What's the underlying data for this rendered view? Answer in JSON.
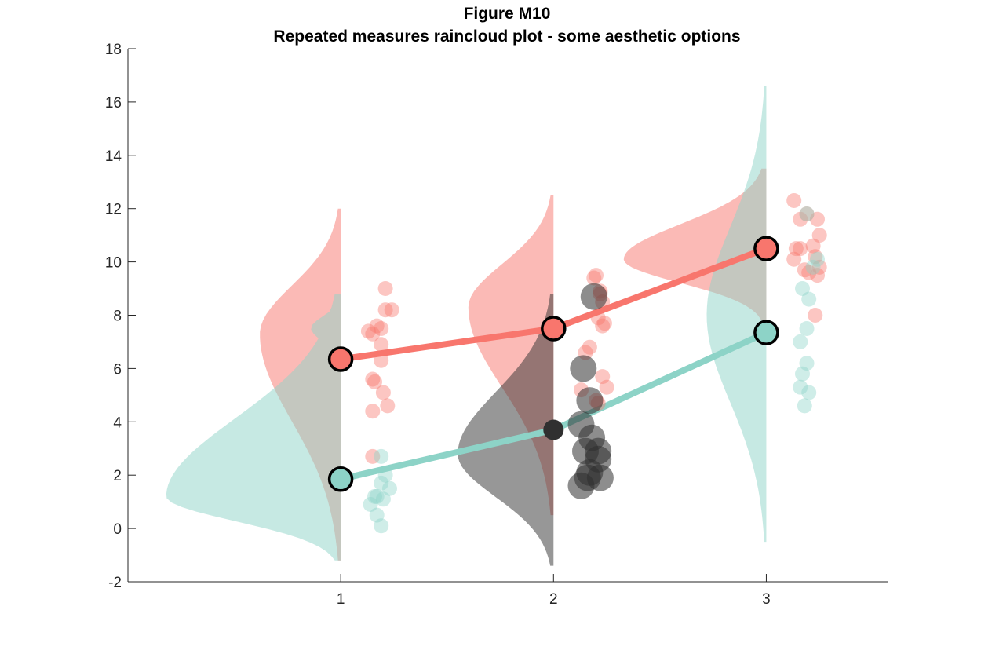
{
  "chart_data": {
    "type": "raincloud",
    "title": "Figure M10",
    "subtitle": "Repeated measures raincloud plot - some aesthetic options",
    "xlabel": "",
    "ylabel": "",
    "xlim": [
      0,
      3.57
    ],
    "ylim": [
      -2,
      18
    ],
    "x_ticks": [
      1,
      2,
      3
    ],
    "y_ticks": [
      -2,
      0,
      2,
      4,
      6,
      8,
      10,
      12,
      14,
      16,
      18
    ],
    "grid": false,
    "colors": {
      "series_a": "#f8766d",
      "series_b": "#8dd3c7",
      "highlight": "#303030"
    },
    "series": [
      {
        "color_key": "series_a",
        "means": [
          {
            "x": 1,
            "y": 6.35
          },
          {
            "x": 2,
            "y": 7.5
          },
          {
            "x": 3,
            "y": 10.5
          }
        ],
        "clouds": [
          {
            "x": 1,
            "ymin": -1.2,
            "ymax": 12.0,
            "mode": 7.3,
            "width": 0.38
          },
          {
            "x": 2,
            "ymin": 0.5,
            "ymax": 12.5,
            "mode": 8.3,
            "width": 0.4
          },
          {
            "x": 3,
            "ymin": 7.8,
            "ymax": 13.5,
            "mode": 10.1,
            "width": 0.67
          }
        ],
        "rain": [
          {
            "x": 1.13,
            "y": 7.4
          },
          {
            "x": 1.15,
            "y": 7.3
          },
          {
            "x": 1.17,
            "y": 7.6
          },
          {
            "x": 1.19,
            "y": 7.5
          },
          {
            "x": 1.21,
            "y": 9.0
          },
          {
            "x": 1.21,
            "y": 8.2
          },
          {
            "x": 1.24,
            "y": 8.2
          },
          {
            "x": 1.19,
            "y": 6.9
          },
          {
            "x": 1.19,
            "y": 6.3
          },
          {
            "x": 1.2,
            "y": 5.1
          },
          {
            "x": 1.15,
            "y": 5.6
          },
          {
            "x": 1.16,
            "y": 5.5
          },
          {
            "x": 1.22,
            "y": 4.6
          },
          {
            "x": 1.15,
            "y": 4.4
          },
          {
            "x": 1.15,
            "y": 2.7
          },
          {
            "x": 2.15,
            "y": 6.6
          },
          {
            "x": 2.17,
            "y": 6.8
          },
          {
            "x": 2.19,
            "y": 9.4
          },
          {
            "x": 2.2,
            "y": 9.5
          },
          {
            "x": 2.22,
            "y": 8.9
          },
          {
            "x": 2.23,
            "y": 8.5
          },
          {
            "x": 2.21,
            "y": 7.9
          },
          {
            "x": 2.24,
            "y": 7.7
          },
          {
            "x": 2.23,
            "y": 7.6
          },
          {
            "x": 2.23,
            "y": 5.7
          },
          {
            "x": 2.25,
            "y": 5.3
          },
          {
            "x": 2.13,
            "y": 5.2
          },
          {
            "x": 2.2,
            "y": 4.8
          },
          {
            "x": 2.21,
            "y": 4.7
          },
          {
            "x": 2.22,
            "y": 8.8
          },
          {
            "x": 3.13,
            "y": 12.3
          },
          {
            "x": 3.16,
            "y": 11.6
          },
          {
            "x": 3.19,
            "y": 11.8
          },
          {
            "x": 3.24,
            "y": 11.6
          },
          {
            "x": 3.22,
            "y": 10.6
          },
          {
            "x": 3.25,
            "y": 11.0
          },
          {
            "x": 3.14,
            "y": 10.5
          },
          {
            "x": 3.16,
            "y": 10.5
          },
          {
            "x": 3.13,
            "y": 10.1
          },
          {
            "x": 3.23,
            "y": 10.2
          },
          {
            "x": 3.18,
            "y": 9.7
          },
          {
            "x": 3.2,
            "y": 9.6
          },
          {
            "x": 3.24,
            "y": 9.5
          },
          {
            "x": 3.25,
            "y": 9.8
          },
          {
            "x": 3.23,
            "y": 8.0
          }
        ]
      },
      {
        "color_key": "series_b",
        "means": [
          {
            "x": 1,
            "y": 1.85
          },
          {
            "x": 2,
            "y": 3.7,
            "color_key": "highlight",
            "no_outline": true
          },
          {
            "x": 3,
            "y": 7.35
          }
        ],
        "clouds": [
          {
            "x": 1,
            "ymin": -1.2,
            "ymax": 8.8,
            "mode": 1.2,
            "width": 0.82,
            "pair_mode": 7.5,
            "pair_width": 0.14
          },
          {
            "x": 2,
            "ymin": -1.4,
            "ymax": 8.8,
            "mode": 2.8,
            "width": 0.45,
            "color_key": "highlight"
          },
          {
            "x": 3,
            "ymin": -0.5,
            "ymax": 16.6,
            "mode": 8.0,
            "width": 0.28
          }
        ],
        "rain": [
          {
            "x": 1.19,
            "y": 2.7
          },
          {
            "x": 1.21,
            "y": 2.0
          },
          {
            "x": 1.19,
            "y": 1.7
          },
          {
            "x": 1.23,
            "y": 1.5
          },
          {
            "x": 1.16,
            "y": 1.2
          },
          {
            "x": 1.17,
            "y": 1.2
          },
          {
            "x": 1.2,
            "y": 1.1
          },
          {
            "x": 1.14,
            "y": 0.9
          },
          {
            "x": 1.17,
            "y": 0.5
          },
          {
            "x": 1.19,
            "y": 0.1
          },
          {
            "x": 3.17,
            "y": 9.0
          },
          {
            "x": 3.2,
            "y": 8.6
          },
          {
            "x": 3.19,
            "y": 7.5
          },
          {
            "x": 3.16,
            "y": 7.0
          },
          {
            "x": 3.19,
            "y": 6.2
          },
          {
            "x": 3.17,
            "y": 5.8
          },
          {
            "x": 3.16,
            "y": 5.3
          },
          {
            "x": 3.2,
            "y": 5.1
          },
          {
            "x": 3.18,
            "y": 4.6
          },
          {
            "x": 3.24,
            "y": 10.1
          },
          {
            "x": 3.22,
            "y": 9.8
          },
          {
            "x": 3.19,
            "y": 11.8
          }
        ]
      },
      {
        "color_key": "highlight",
        "means": [],
        "clouds": [],
        "rain": [
          {
            "x": 2.19,
            "y": 8.7
          },
          {
            "x": 2.14,
            "y": 6.0
          },
          {
            "x": 2.17,
            "y": 4.8
          },
          {
            "x": 2.13,
            "y": 3.9
          },
          {
            "x": 2.18,
            "y": 3.4
          },
          {
            "x": 2.15,
            "y": 2.9
          },
          {
            "x": 2.21,
            "y": 2.9
          },
          {
            "x": 2.21,
            "y": 2.6
          },
          {
            "x": 2.17,
            "y": 2.1
          },
          {
            "x": 2.13,
            "y": 1.6
          },
          {
            "x": 2.16,
            "y": 1.9
          },
          {
            "x": 2.22,
            "y": 1.9
          }
        ]
      }
    ]
  }
}
